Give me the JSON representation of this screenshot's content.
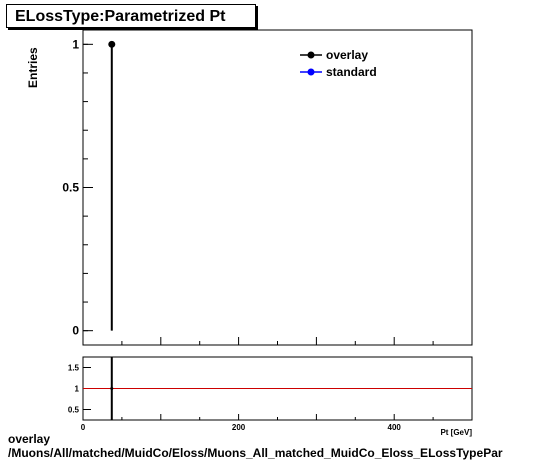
{
  "title": "ELossType:Parametrized Pt",
  "footer": {
    "line1": "overlay",
    "line2": "/Muons/All/matched/MuidCo/Eloss/Muons_All_matched_MuidCo_Eloss_ELossTypePar"
  },
  "chart_data": [
    {
      "type": "scatter",
      "ylabel": "Entries",
      "xlabel": "Pt [GeV]",
      "xlim": [
        0,
        500
      ],
      "ylim": [
        -0.05,
        1.05
      ],
      "yticks": [
        {
          "v": 0,
          "label": "0"
        },
        {
          "v": 0.5,
          "label": "0.5"
        },
        {
          "v": 1,
          "label": "1"
        }
      ],
      "legend": {
        "placement": "top-right",
        "entries": [
          {
            "name": "overlay",
            "color": "#000000"
          },
          {
            "name": "standard",
            "color": "#0000ff"
          }
        ]
      },
      "series": [
        {
          "name": "overlay",
          "color": "#000000",
          "points": [
            {
              "x": 37,
              "y": 1,
              "yerr_low": 1,
              "yerr_high": 0
            }
          ]
        },
        {
          "name": "standard",
          "color": "#0000ff",
          "points": []
        }
      ]
    },
    {
      "type": "line",
      "xlim": [
        0,
        500
      ],
      "ylim": [
        0.25,
        1.75
      ],
      "xticks": [
        {
          "v": 0,
          "label": "0"
        },
        {
          "v": 200,
          "label": "200"
        },
        {
          "v": 400,
          "label": "400"
        }
      ],
      "yticks": [
        {
          "v": 0.5,
          "label": "0.5"
        },
        {
          "v": 1,
          "label": "1"
        },
        {
          "v": 1.5,
          "label": "1.5"
        }
      ],
      "reference_line": {
        "y": 1,
        "color": "#cc0000"
      },
      "points": [
        {
          "x": 37,
          "y": 1
        }
      ]
    }
  ]
}
